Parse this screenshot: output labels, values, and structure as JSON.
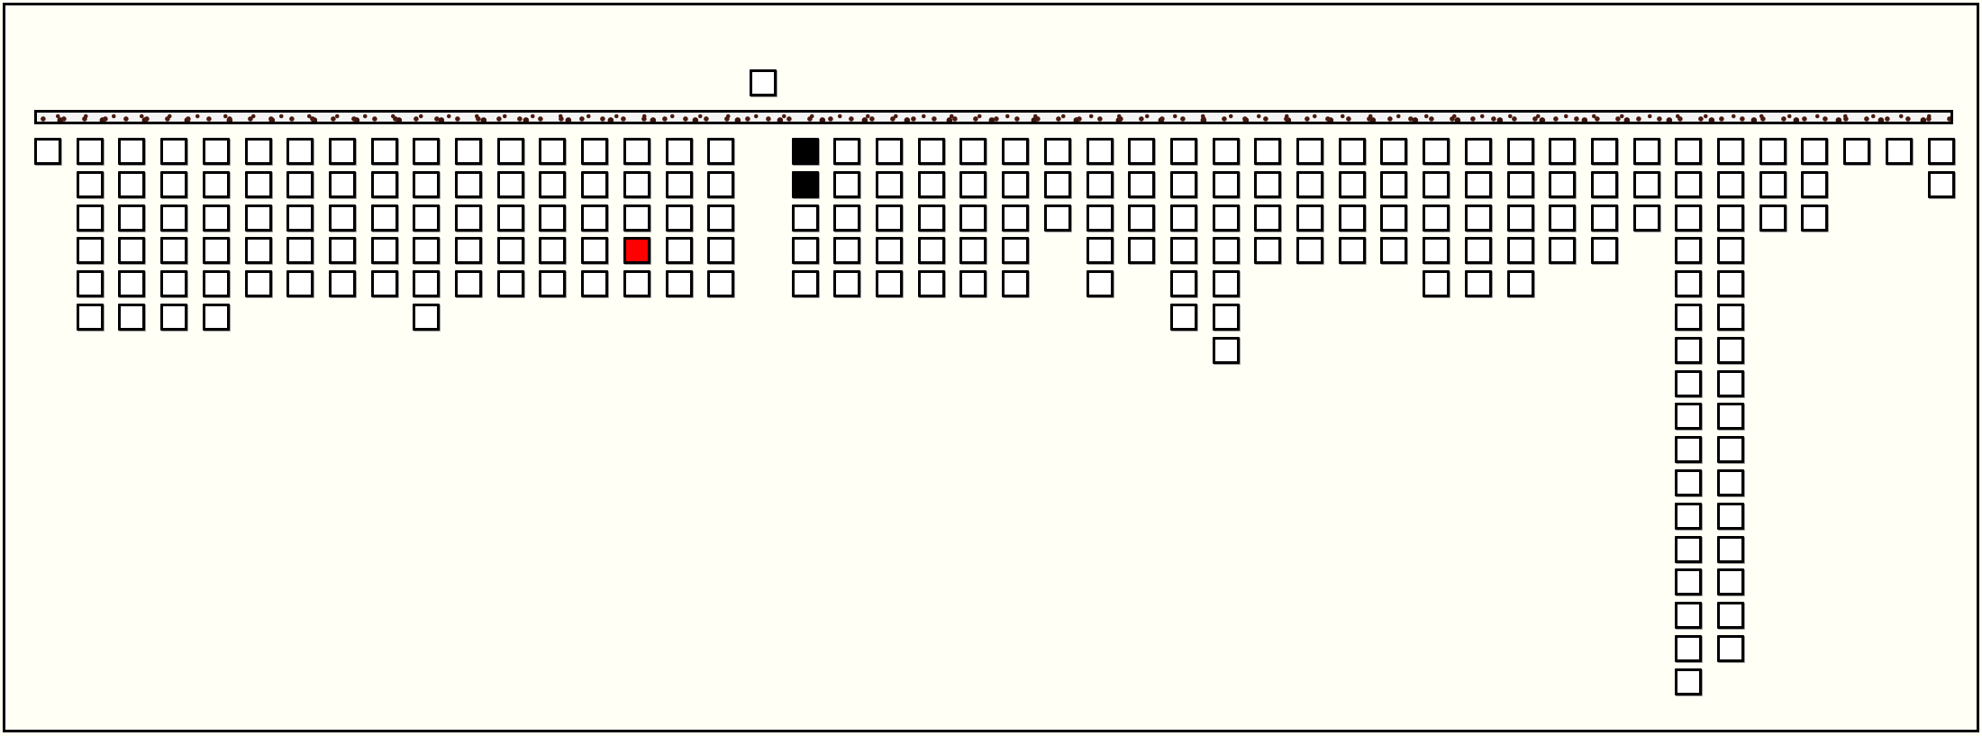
{
  "game": {
    "colors": {
      "background": "#fffff6",
      "cell": "#ffffff",
      "border": "#000000",
      "black": "#000000",
      "red": "#ff0000",
      "bar_dots": "#4a1a10"
    },
    "held_piece": {
      "column": 17
    },
    "columns": [
      1,
      6,
      6,
      6,
      6,
      5,
      5,
      5,
      5,
      6,
      5,
      5,
      5,
      5,
      5,
      5,
      5,
      0,
      5,
      5,
      5,
      5,
      5,
      5,
      3,
      5,
      4,
      6,
      7,
      4,
      4,
      4,
      4,
      5,
      5,
      5,
      4,
      4,
      3,
      17,
      16,
      3,
      3,
      1,
      1,
      2
    ],
    "special_cells": [
      {
        "column": 18,
        "row": 0,
        "color": "black"
      },
      {
        "column": 18,
        "row": 1,
        "color": "black"
      },
      {
        "column": 14,
        "row": 3,
        "color": "red"
      }
    ]
  }
}
